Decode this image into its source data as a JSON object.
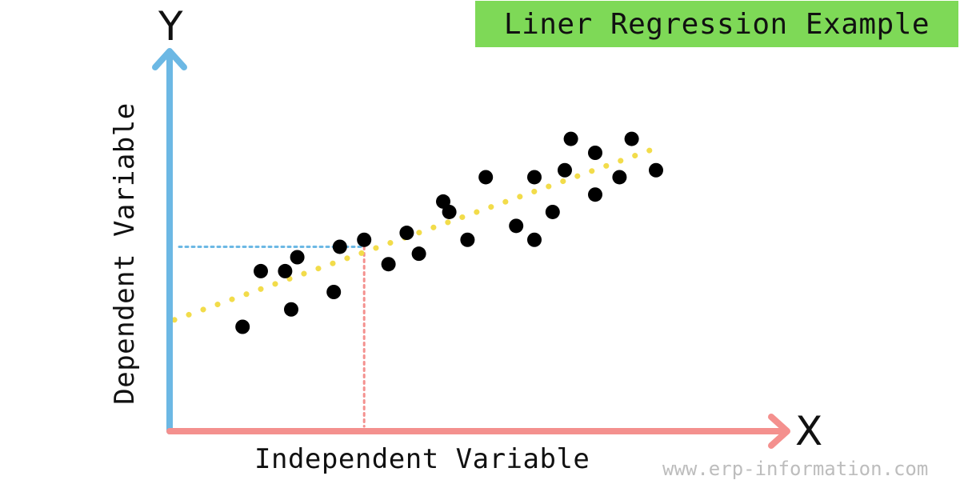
{
  "title": "Liner Regression Example",
  "y_axis_letter": "Y",
  "x_axis_letter": "X",
  "x_label": "Independent Variable",
  "y_label": "Dependent Variable",
  "watermark": "www.erp-information.com",
  "colors": {
    "title_background": "#7ed957",
    "y_axis": "#6cb8e4",
    "x_axis": "#f4908e",
    "regression_line": "#f2dc4a",
    "data_points": "#000000",
    "guide_horizontal": "#6cb8e4",
    "guide_vertical": "#f4908e"
  },
  "chart_data": {
    "type": "scatter",
    "x_range": [
      0,
      10
    ],
    "y_range": [
      0,
      10
    ],
    "points": [
      {
        "x": 1.2,
        "y": 3.0
      },
      {
        "x": 1.5,
        "y": 4.6
      },
      {
        "x": 1.9,
        "y": 4.6
      },
      {
        "x": 2.0,
        "y": 3.5
      },
      {
        "x": 2.1,
        "y": 5.0
      },
      {
        "x": 2.7,
        "y": 4.0
      },
      {
        "x": 2.8,
        "y": 5.3
      },
      {
        "x": 3.2,
        "y": 5.5
      },
      {
        "x": 3.6,
        "y": 4.8
      },
      {
        "x": 3.9,
        "y": 5.7
      },
      {
        "x": 4.1,
        "y": 5.1
      },
      {
        "x": 4.5,
        "y": 6.6
      },
      {
        "x": 4.6,
        "y": 6.3
      },
      {
        "x": 4.9,
        "y": 5.5
      },
      {
        "x": 5.2,
        "y": 7.3
      },
      {
        "x": 5.7,
        "y": 5.9
      },
      {
        "x": 6.0,
        "y": 5.5
      },
      {
        "x": 6.0,
        "y": 7.3
      },
      {
        "x": 6.3,
        "y": 6.3
      },
      {
        "x": 6.5,
        "y": 7.5
      },
      {
        "x": 6.6,
        "y": 8.4
      },
      {
        "x": 7.0,
        "y": 6.8
      },
      {
        "x": 7.0,
        "y": 8.0
      },
      {
        "x": 7.4,
        "y": 7.3
      },
      {
        "x": 7.6,
        "y": 8.4
      },
      {
        "x": 8.0,
        "y": 7.5
      }
    ],
    "regression_line": {
      "x1": 0,
      "y1": 3.2,
      "x2": 8.0,
      "y2": 8.2
    },
    "highlighted_point": {
      "x": 3.2,
      "y": 5.3
    }
  }
}
